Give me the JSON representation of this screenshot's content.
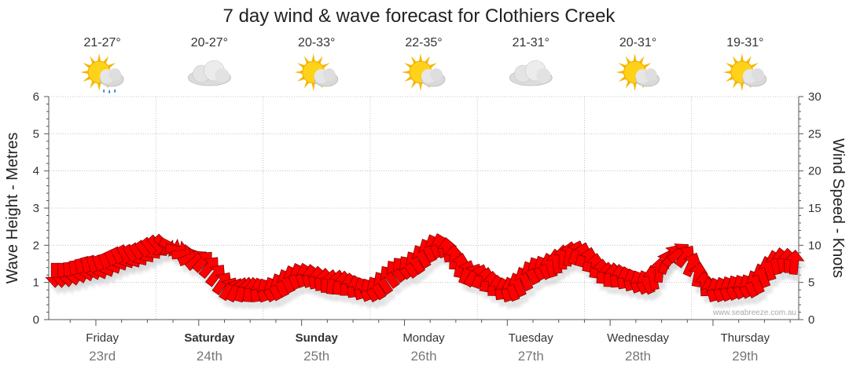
{
  "page": {
    "title": "7 day wind & wave forecast for Clothiers Creek",
    "credit": "www.seabreeze.com.au"
  },
  "left_axis": {
    "title": "Wave Height - Metres",
    "ticks": [
      "0",
      "1",
      "2",
      "3",
      "4",
      "5",
      "6"
    ]
  },
  "right_axis": {
    "title": "Wind Speed - Knots",
    "ticks": [
      "0",
      "5",
      "10",
      "15",
      "20",
      "25",
      "30"
    ]
  },
  "days": [
    {
      "name": "Friday",
      "date": "23rd",
      "temps": "21-27°",
      "icon": "sun-cloud-rain-icon",
      "bold": false
    },
    {
      "name": "Saturday",
      "date": "24th",
      "temps": "20-27°",
      "icon": "cloud-icon",
      "bold": true
    },
    {
      "name": "Sunday",
      "date": "25th",
      "temps": "20-33°",
      "icon": "sun-cloud-icon",
      "bold": true
    },
    {
      "name": "Monday",
      "date": "26th",
      "temps": "22-35°",
      "icon": "sun-cloud-icon",
      "bold": false
    },
    {
      "name": "Tuesday",
      "date": "27th",
      "temps": "21-31°",
      "icon": "cloud-icon",
      "bold": false
    },
    {
      "name": "Wednesday",
      "date": "28th",
      "temps": "20-31°",
      "icon": "sun-cloud-icon",
      "bold": false
    },
    {
      "name": "Thursday",
      "date": "29th",
      "temps": "19-31°",
      "icon": "sun-cloud-icon",
      "bold": false
    }
  ],
  "colors": {
    "arrow": "#ff0000",
    "arrow_stroke": "#7a0000",
    "shadow": "#cfcfcf"
  },
  "chart_data": {
    "type": "line",
    "title": "7 day wind & wave forecast for Clothiers Creek",
    "x_unit": "hours from start of Friday 23rd",
    "ylabel_left": "Wave Height - Metres",
    "ylabel_right": "Wind Speed - Knots",
    "ylim_left": [
      0,
      6
    ],
    "ylim_right": [
      0,
      30
    ],
    "grid": true,
    "series": [
      {
        "name": "Wind Speed - Knots",
        "x": [
          -8,
          0,
          8,
          16,
          24,
          32,
          40,
          48,
          56,
          64,
          72,
          80,
          88,
          96,
          104,
          112,
          120,
          128,
          136,
          144,
          152,
          160,
          168
        ],
        "values": [
          6,
          7,
          8.5,
          10,
          8,
          4,
          4,
          6,
          5,
          4,
          7,
          10,
          6,
          4,
          7,
          9,
          6,
          5,
          9,
          4,
          4.5,
          8,
          7
        ],
        "direction_deg": [
          90,
          70,
          60,
          45,
          315,
          300,
          240,
          250,
          280,
          240,
          230,
          250,
          300,
          250,
          240,
          290,
          270,
          240,
          320,
          250,
          240,
          260,
          300
        ]
      }
    ]
  }
}
